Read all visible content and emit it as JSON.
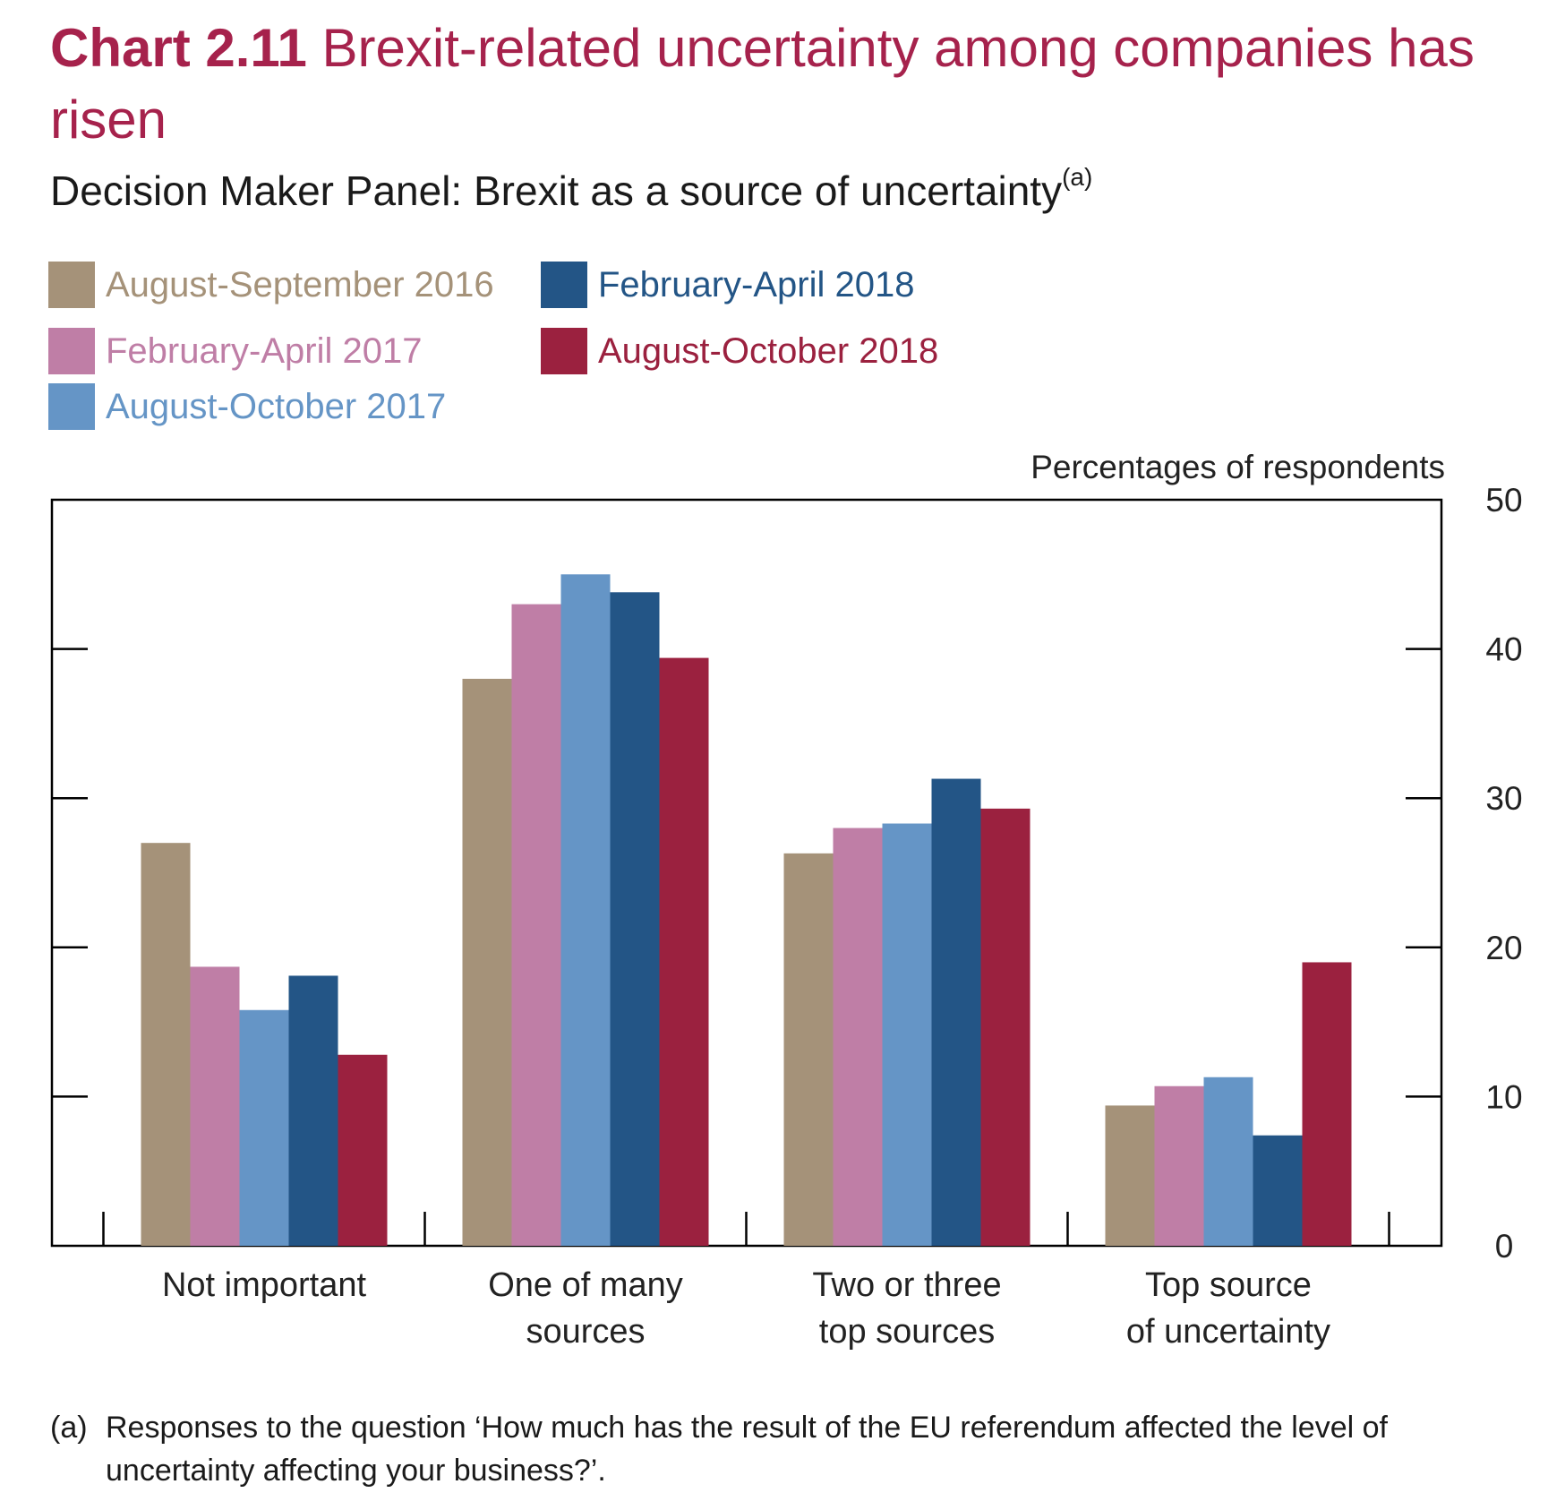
{
  "header": {
    "chart_number": "Chart 2.11",
    "title": "Brexit-related uncertainty among companies has risen",
    "subtitle": "Decision Maker Panel: Brexit as a source of uncertainty",
    "subtitle_marker": "(a)"
  },
  "footnote": {
    "marker": "(a)",
    "text": "Responses to the question ‘How much has the result of the EU referendum affected the level of uncertainty affecting your business?’."
  },
  "chart_data": {
    "type": "bar",
    "unit_label": "Percentages of respondents",
    "y_axis_position": "right",
    "ylim": [
      0,
      50
    ],
    "yticks": [
      0,
      10,
      20,
      30,
      40,
      50
    ],
    "grid": false,
    "legend_placement": "top-left",
    "categories": [
      [
        "Not important"
      ],
      [
        "One of many",
        "sources"
      ],
      [
        "Two or three",
        "top sources"
      ],
      [
        "Top source",
        "of uncertainty"
      ]
    ],
    "series": [
      {
        "name": "August-September 2016",
        "color": "#a59279",
        "values": [
          27,
          38,
          26.3,
          9.4
        ]
      },
      {
        "name": "February-April 2017",
        "color": "#bf7ea6",
        "values": [
          18.7,
          43,
          28,
          10.7
        ]
      },
      {
        "name": "August-October 2017",
        "color": "#6595c6",
        "values": [
          15.8,
          45,
          28.3,
          11.3
        ]
      },
      {
        "name": "February-April 2018",
        "color": "#235586",
        "values": [
          18.1,
          43.8,
          31.3,
          7.4
        ]
      },
      {
        "name": "August-October 2018",
        "color": "#9b213f",
        "values": [
          12.8,
          39.4,
          29.3,
          19
        ]
      }
    ]
  }
}
